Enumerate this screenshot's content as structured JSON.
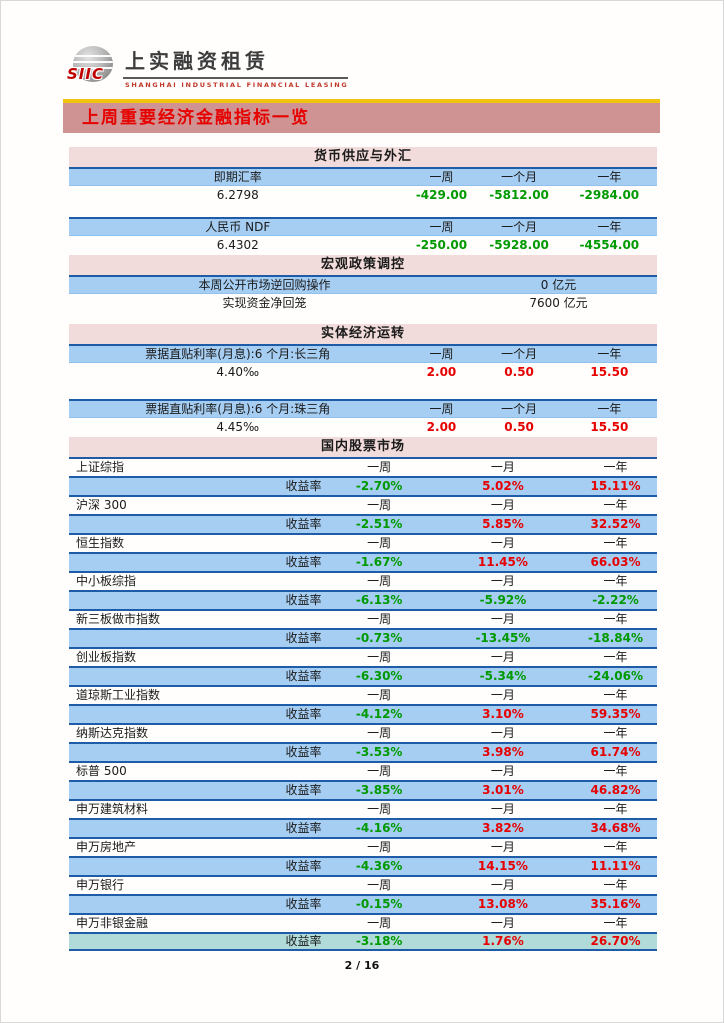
{
  "logo": {
    "siic": "SIIC",
    "cn": "上实融资租赁",
    "en": "SHANGHAI INDUSTRIAL FINANCIAL LEASING"
  },
  "banner": {
    "title": "上周重要经济金融指标一览"
  },
  "colors": {
    "banner_bg": "#ce9392",
    "banner_text": "#e60000",
    "banner_top_line": "#f2c410",
    "section_header_bg": "#f2dcdb",
    "row_blue": "#a6cef3",
    "row_teal": "#b0dbd9",
    "border_blue": "#1e5ca8",
    "negative_green": "#009900",
    "positive_red": "#e60000"
  },
  "sections": {
    "money_fx": {
      "title": "货币供应与外汇",
      "tables": [
        {
          "label": "即期汇率",
          "cols": [
            "一周",
            "一个月",
            "一年"
          ],
          "value": "6.2798",
          "changes": [
            "-429.00",
            "-5812.00",
            "-2984.00"
          ]
        },
        {
          "label": "人民币 NDF",
          "cols": [
            "一周",
            "一个月",
            "一年"
          ],
          "value": "6.4302",
          "changes": [
            "-250.00",
            "-5928.00",
            "-4554.00"
          ]
        }
      ]
    },
    "macro_policy": {
      "title": "宏观政策调控",
      "rows": [
        {
          "label": "本周公开市场逆回购操作",
          "value": "0 亿元"
        },
        {
          "label": "实现资金净回笼",
          "value": "7600 亿元"
        }
      ]
    },
    "real_economy": {
      "title": "实体经济运转",
      "tables": [
        {
          "label": "票据直贴利率(月息):6 个月:长三角",
          "cols": [
            "一周",
            "一个月",
            "一年"
          ],
          "value": "4.40‰",
          "changes": [
            "2.00",
            "0.50",
            "15.50"
          ]
        },
        {
          "label": "票据直贴利率(月息):6 个月:珠三角",
          "cols": [
            "一周",
            "一个月",
            "一年"
          ],
          "value": "4.45‰",
          "changes": [
            "2.00",
            "0.50",
            "15.50"
          ]
        }
      ]
    },
    "stock_market": {
      "title": "国内股票市场",
      "period_cols": [
        "一周",
        "一月",
        "一年"
      ],
      "yield_label": "收益率",
      "indices": [
        {
          "name": "上证综指",
          "returns": [
            "-2.70%",
            "5.02%",
            "15.11%"
          ]
        },
        {
          "name": "沪深 300",
          "returns": [
            "-2.51%",
            "5.85%",
            "32.52%"
          ]
        },
        {
          "name": "恒生指数",
          "returns": [
            "-1.67%",
            "11.45%",
            "66.03%"
          ]
        },
        {
          "name": "中小板综指",
          "returns": [
            "-6.13%",
            "-5.92%",
            "-2.22%"
          ]
        },
        {
          "name": "新三板做市指数",
          "returns": [
            "-0.73%",
            "-13.45%",
            "-18.84%"
          ]
        },
        {
          "name": "创业板指数",
          "returns": [
            "-6.30%",
            "-5.34%",
            "-24.06%"
          ]
        },
        {
          "name": "道琼斯工业指数",
          "returns": [
            "-4.12%",
            "3.10%",
            "59.35%"
          ]
        },
        {
          "name": "纳斯达克指数",
          "returns": [
            "-3.53%",
            "3.98%",
            "61.74%"
          ]
        },
        {
          "name": "标普 500",
          "returns": [
            "-3.85%",
            "3.01%",
            "46.82%"
          ]
        },
        {
          "name": "申万建筑材料",
          "returns": [
            "-4.16%",
            "3.82%",
            "34.68%"
          ]
        },
        {
          "name": "申万房地产",
          "returns": [
            "-4.36%",
            "14.15%",
            "11.11%"
          ]
        },
        {
          "name": "申万银行",
          "returns": [
            "-0.15%",
            "13.08%",
            "35.16%"
          ]
        },
        {
          "name": "申万非银金融",
          "returns": [
            "-3.18%",
            "1.76%",
            "26.70%"
          ]
        }
      ]
    }
  },
  "footer": {
    "page_indicator": "2 / 16"
  }
}
